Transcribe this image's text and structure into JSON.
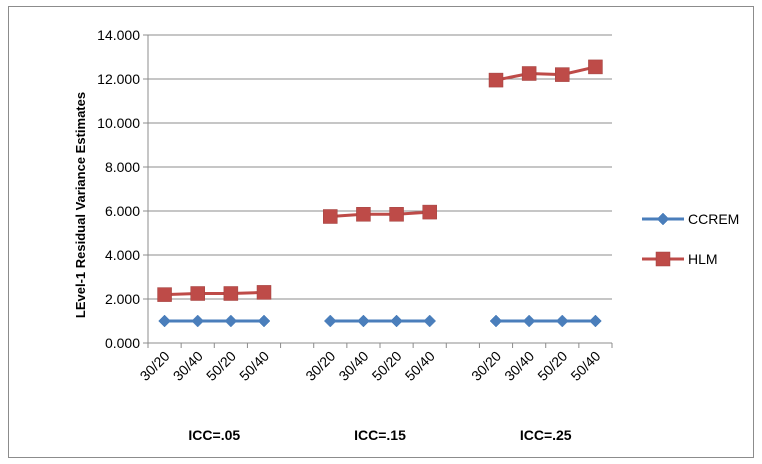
{
  "chart_data": {
    "type": "line",
    "title": "",
    "ylabel": "LEvel-1 Residual Variance Estimates",
    "xlabel": "",
    "ylim": [
      0,
      14
    ],
    "y_ticks": [
      "0.000",
      "2.000",
      "4.000",
      "6.000",
      "8.000",
      "10.000",
      "12.000",
      "14.000"
    ],
    "grid": "horizontal",
    "legend_position": "right",
    "groups": [
      {
        "label": "ICC=.05",
        "categories": [
          "30/20",
          "30/40",
          "50/20",
          "50/40"
        ]
      },
      {
        "label": "ICC=.15",
        "categories": [
          "30/20",
          "30/40",
          "50/20",
          "50/40"
        ]
      },
      {
        "label": "ICC=.25",
        "categories": [
          "30/20",
          "30/40",
          "50/20",
          "50/40"
        ]
      }
    ],
    "series": [
      {
        "name": "CCREM",
        "color": "#4a7ebb",
        "marker": "diamond",
        "values": [
          [
            1.0,
            1.0,
            1.0,
            1.0
          ],
          [
            1.0,
            1.0,
            1.0,
            1.0
          ],
          [
            1.0,
            1.0,
            1.0,
            1.0
          ]
        ]
      },
      {
        "name": "HLM",
        "color": "#be4b48",
        "marker": "square",
        "values": [
          [
            2.2,
            2.25,
            2.25,
            2.3
          ],
          [
            5.75,
            5.85,
            5.85,
            5.95
          ],
          [
            11.95,
            12.25,
            12.2,
            12.55
          ]
        ]
      }
    ]
  }
}
